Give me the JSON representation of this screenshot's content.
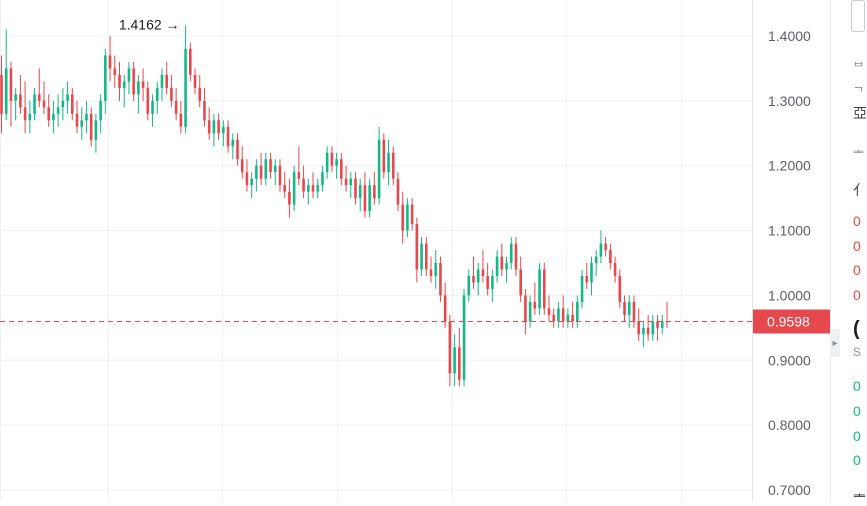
{
  "chart_data": {
    "type": "candlestick",
    "ylim": [
      0.7,
      1.45
    ],
    "y_ticks": [
      "1.4000",
      "1.3000",
      "1.2000",
      "1.1000",
      "1.0000",
      "0.9000",
      "0.8000",
      "0.7000"
    ],
    "y_tick_values": [
      1.4,
      1.3,
      1.2,
      1.1,
      1.0,
      0.9,
      0.8,
      0.7
    ],
    "current_price": "0.9598",
    "current_price_value": 0.9598,
    "high_annotation": "1.4162",
    "high_annotation_arrow": "→",
    "high_value": 1.4162,
    "high_index": 39,
    "colors": {
      "up": "#12b886",
      "down": "#e5484d",
      "price_tag": "#e5484d",
      "grid": "#eef0f3",
      "text": "#5a5f66"
    },
    "candles": [
      [
        1.34,
        1.37,
        1.25,
        1.28
      ],
      [
        1.28,
        1.41,
        1.27,
        1.35
      ],
      [
        1.35,
        1.36,
        1.26,
        1.3
      ],
      [
        1.3,
        1.32,
        1.27,
        1.31
      ],
      [
        1.31,
        1.34,
        1.28,
        1.29
      ],
      [
        1.29,
        1.33,
        1.25,
        1.27
      ],
      [
        1.27,
        1.3,
        1.25,
        1.28
      ],
      [
        1.28,
        1.32,
        1.27,
        1.31
      ],
      [
        1.31,
        1.35,
        1.29,
        1.3
      ],
      [
        1.3,
        1.33,
        1.28,
        1.29
      ],
      [
        1.29,
        1.31,
        1.26,
        1.27
      ],
      [
        1.27,
        1.3,
        1.25,
        1.28
      ],
      [
        1.28,
        1.31,
        1.26,
        1.29
      ],
      [
        1.29,
        1.32,
        1.27,
        1.3
      ],
      [
        1.3,
        1.33,
        1.28,
        1.31
      ],
      [
        1.31,
        1.32,
        1.27,
        1.28
      ],
      [
        1.28,
        1.3,
        1.25,
        1.26
      ],
      [
        1.26,
        1.29,
        1.24,
        1.27
      ],
      [
        1.27,
        1.3,
        1.25,
        1.28
      ],
      [
        1.28,
        1.29,
        1.23,
        1.24
      ],
      [
        1.24,
        1.28,
        1.22,
        1.27
      ],
      [
        1.27,
        1.31,
        1.25,
        1.3
      ],
      [
        1.3,
        1.38,
        1.28,
        1.37
      ],
      [
        1.37,
        1.4,
        1.33,
        1.35
      ],
      [
        1.35,
        1.37,
        1.32,
        1.34
      ],
      [
        1.34,
        1.36,
        1.3,
        1.32
      ],
      [
        1.32,
        1.34,
        1.29,
        1.33
      ],
      [
        1.33,
        1.36,
        1.31,
        1.35
      ],
      [
        1.35,
        1.36,
        1.3,
        1.31
      ],
      [
        1.31,
        1.34,
        1.28,
        1.33
      ],
      [
        1.33,
        1.35,
        1.3,
        1.32
      ],
      [
        1.32,
        1.33,
        1.27,
        1.28
      ],
      [
        1.28,
        1.31,
        1.26,
        1.3
      ],
      [
        1.3,
        1.33,
        1.28,
        1.32
      ],
      [
        1.32,
        1.35,
        1.3,
        1.34
      ],
      [
        1.34,
        1.36,
        1.31,
        1.32
      ],
      [
        1.32,
        1.34,
        1.29,
        1.3
      ],
      [
        1.3,
        1.32,
        1.27,
        1.28
      ],
      [
        1.28,
        1.3,
        1.25,
        1.26
      ],
      [
        1.26,
        1.4162,
        1.25,
        1.38
      ],
      [
        1.38,
        1.39,
        1.33,
        1.34
      ],
      [
        1.34,
        1.35,
        1.31,
        1.32
      ],
      [
        1.32,
        1.34,
        1.29,
        1.3
      ],
      [
        1.3,
        1.32,
        1.26,
        1.27
      ],
      [
        1.27,
        1.29,
        1.24,
        1.25
      ],
      [
        1.25,
        1.28,
        1.23,
        1.27
      ],
      [
        1.27,
        1.28,
        1.24,
        1.25
      ],
      [
        1.25,
        1.27,
        1.23,
        1.26
      ],
      [
        1.26,
        1.27,
        1.22,
        1.23
      ],
      [
        1.23,
        1.25,
        1.21,
        1.24
      ],
      [
        1.24,
        1.25,
        1.2,
        1.21
      ],
      [
        1.21,
        1.23,
        1.18,
        1.19
      ],
      [
        1.19,
        1.21,
        1.16,
        1.17
      ],
      [
        1.17,
        1.19,
        1.15,
        1.18
      ],
      [
        1.18,
        1.21,
        1.16,
        1.2
      ],
      [
        1.2,
        1.22,
        1.17,
        1.18
      ],
      [
        1.18,
        1.22,
        1.17,
        1.21
      ],
      [
        1.21,
        1.22,
        1.18,
        1.19
      ],
      [
        1.19,
        1.21,
        1.17,
        1.2
      ],
      [
        1.2,
        1.21,
        1.16,
        1.17
      ],
      [
        1.17,
        1.19,
        1.15,
        1.16
      ],
      [
        1.16,
        1.18,
        1.12,
        1.14
      ],
      [
        1.14,
        1.2,
        1.13,
        1.19
      ],
      [
        1.19,
        1.23,
        1.17,
        1.18
      ],
      [
        1.18,
        1.2,
        1.15,
        1.16
      ],
      [
        1.16,
        1.18,
        1.14,
        1.17
      ],
      [
        1.17,
        1.19,
        1.15,
        1.16
      ],
      [
        1.16,
        1.18,
        1.15,
        1.17
      ],
      [
        1.17,
        1.2,
        1.16,
        1.19
      ],
      [
        1.19,
        1.23,
        1.18,
        1.22
      ],
      [
        1.22,
        1.23,
        1.19,
        1.2
      ],
      [
        1.2,
        1.22,
        1.18,
        1.21
      ],
      [
        1.21,
        1.22,
        1.17,
        1.18
      ],
      [
        1.18,
        1.2,
        1.16,
        1.17
      ],
      [
        1.17,
        1.19,
        1.15,
        1.18
      ],
      [
        1.18,
        1.19,
        1.14,
        1.15
      ],
      [
        1.15,
        1.18,
        1.13,
        1.17
      ],
      [
        1.17,
        1.19,
        1.12,
        1.13
      ],
      [
        1.13,
        1.18,
        1.12,
        1.17
      ],
      [
        1.17,
        1.19,
        1.14,
        1.15
      ],
      [
        1.15,
        1.26,
        1.14,
        1.24
      ],
      [
        1.24,
        1.25,
        1.18,
        1.19
      ],
      [
        1.19,
        1.24,
        1.17,
        1.22
      ],
      [
        1.22,
        1.23,
        1.17,
        1.18
      ],
      [
        1.18,
        1.19,
        1.13,
        1.14
      ],
      [
        1.14,
        1.16,
        1.08,
        1.1
      ],
      [
        1.1,
        1.15,
        1.09,
        1.14
      ],
      [
        1.14,
        1.15,
        1.1,
        1.11
      ],
      [
        1.11,
        1.12,
        1.02,
        1.04
      ],
      [
        1.04,
        1.09,
        1.03,
        1.08
      ],
      [
        1.08,
        1.09,
        1.03,
        1.04
      ],
      [
        1.04,
        1.06,
        1.02,
        1.03
      ],
      [
        1.03,
        1.07,
        1.01,
        1.05
      ],
      [
        1.05,
        1.06,
        0.99,
        1.0
      ],
      [
        1.0,
        1.02,
        0.95,
        0.96
      ],
      [
        0.96,
        0.97,
        0.86,
        0.88
      ],
      [
        0.88,
        0.94,
        0.86,
        0.92
      ],
      [
        0.92,
        0.95,
        0.86,
        0.87
      ],
      [
        0.87,
        1.01,
        0.86,
        1.0
      ],
      [
        1.0,
        1.04,
        0.99,
        1.03
      ],
      [
        1.03,
        1.06,
        1.01,
        1.02
      ],
      [
        1.02,
        1.05,
        1.0,
        1.04
      ],
      [
        1.04,
        1.07,
        1.02,
        1.03
      ],
      [
        1.03,
        1.05,
        1.0,
        1.01
      ],
      [
        1.01,
        1.04,
        0.99,
        1.03
      ],
      [
        1.03,
        1.07,
        1.02,
        1.06
      ],
      [
        1.06,
        1.08,
        1.03,
        1.04
      ],
      [
        1.04,
        1.06,
        1.02,
        1.05
      ],
      [
        1.05,
        1.09,
        1.04,
        1.08
      ],
      [
        1.08,
        1.09,
        1.03,
        1.04
      ],
      [
        1.04,
        1.06,
        0.99,
        1.0
      ],
      [
        1.0,
        1.01,
        0.94,
        0.96
      ],
      [
        0.96,
        1.0,
        0.95,
        0.99
      ],
      [
        0.99,
        1.02,
        0.97,
        0.98
      ],
      [
        0.98,
        1.05,
        0.97,
        1.04
      ],
      [
        1.04,
        1.05,
        0.97,
        0.98
      ],
      [
        0.98,
        1.0,
        0.96,
        0.97
      ],
      [
        0.97,
        0.98,
        0.95,
        0.96
      ],
      [
        0.96,
        0.99,
        0.95,
        0.98
      ],
      [
        0.98,
        1.0,
        0.95,
        0.96
      ],
      [
        0.96,
        0.98,
        0.95,
        0.97
      ],
      [
        0.97,
        0.99,
        0.95,
        0.96
      ],
      [
        0.96,
        1.0,
        0.95,
        0.99
      ],
      [
        0.99,
        1.04,
        0.98,
        1.03
      ],
      [
        1.03,
        1.05,
        1.01,
        1.02
      ],
      [
        1.02,
        1.06,
        1.0,
        1.05
      ],
      [
        1.05,
        1.07,
        1.03,
        1.06
      ],
      [
        1.06,
        1.1,
        1.05,
        1.08
      ],
      [
        1.08,
        1.09,
        1.06,
        1.07
      ],
      [
        1.07,
        1.08,
        1.04,
        1.05
      ],
      [
        1.05,
        1.06,
        1.02,
        1.03
      ],
      [
        1.03,
        1.04,
        0.98,
        0.99
      ],
      [
        0.99,
        1.0,
        0.96,
        0.97
      ],
      [
        0.97,
        1.0,
        0.95,
        0.99
      ],
      [
        0.99,
        1.0,
        0.95,
        0.96
      ],
      [
        0.96,
        0.98,
        0.93,
        0.94
      ],
      [
        0.94,
        0.96,
        0.92,
        0.95
      ],
      [
        0.95,
        0.97,
        0.93,
        0.94
      ],
      [
        0.94,
        0.97,
        0.93,
        0.96
      ],
      [
        0.96,
        0.97,
        0.93,
        0.95
      ],
      [
        0.95,
        0.97,
        0.94,
        0.96
      ],
      [
        0.96,
        0.99,
        0.95,
        0.9598
      ]
    ]
  },
  "side_panel": {
    "chars": [
      {
        "t": "ᄇ",
        "c": "gray"
      },
      {
        "t": "ᄀ",
        "c": "gray"
      },
      {
        "t": "亞",
        "c": ""
      },
      {
        "t": "ᆂ",
        "c": "gray"
      },
      {
        "t": "亻",
        "c": ""
      },
      {
        "t": "0",
        "c": "red"
      },
      {
        "t": "0",
        "c": "red"
      },
      {
        "t": "0",
        "c": "red"
      },
      {
        "t": "0",
        "c": "red"
      },
      {
        "t": "(",
        "c": "big"
      },
      {
        "t": "S",
        "c": "gray"
      },
      {
        "t": "0",
        "c": "green"
      },
      {
        "t": "0",
        "c": "green"
      },
      {
        "t": "0",
        "c": "green"
      },
      {
        "t": "0",
        "c": "green"
      },
      {
        "t": "ᆂ",
        "c": ""
      }
    ]
  }
}
